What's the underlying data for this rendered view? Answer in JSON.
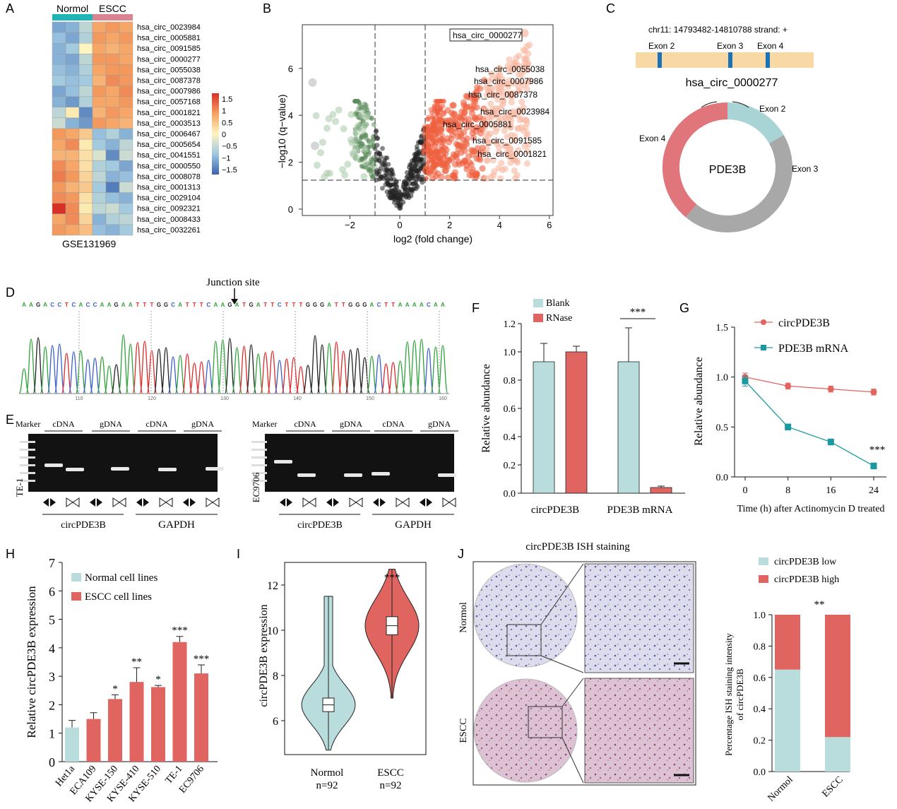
{
  "panels": {
    "A": "A",
    "B": "B",
    "C": "C",
    "D": "D",
    "E": "E",
    "F": "F",
    "G": "G",
    "H": "H",
    "I": "I",
    "J": "J"
  },
  "heatmap": {
    "group1": "Normol",
    "group2": "ESCC",
    "dataset": "GSE131969",
    "group1_color": "#1fb5b5",
    "group2_color": "#d98490",
    "genes": [
      "hsa_circ_0023984",
      "hsa_circ_0005881",
      "hsa_circ_0091585",
      "hsa_circ_0000277",
      "hsa_circ_0055038",
      "hsa_circ_0087378",
      "hsa_circ_0007986",
      "hsa_circ_0057168",
      "hsa_circ_0001821",
      "hsa_circ_0003513",
      "hsa_circ_0006467",
      "hsa_circ_0005654",
      "hsa_circ_0041551",
      "hsa_circ_0000550",
      "hsa_circ_0008078",
      "hsa_circ_0001313",
      "hsa_circ_0029104",
      "hsa_circ_0092321",
      "hsa_circ_0008433",
      "hsa_circ_0032261"
    ],
    "values": [
      [
        -1.0,
        -0.9,
        -0.5,
        0.7,
        0.8,
        0.7
      ],
      [
        -0.8,
        -1.0,
        -0.6,
        0.8,
        0.7,
        0.8
      ],
      [
        -0.9,
        -0.7,
        0.0,
        0.7,
        0.6,
        0.7
      ],
      [
        -0.9,
        -1.0,
        -0.5,
        0.8,
        0.8,
        0.7
      ],
      [
        -0.8,
        -0.9,
        -0.6,
        0.7,
        0.8,
        0.8
      ],
      [
        -0.7,
        -0.8,
        -0.7,
        0.6,
        0.9,
        0.8
      ],
      [
        -1.0,
        -0.8,
        -0.5,
        0.8,
        0.7,
        0.9
      ],
      [
        -0.9,
        -1.1,
        -0.6,
        0.7,
        0.7,
        0.8
      ],
      [
        -0.5,
        0.1,
        -1.2,
        0.6,
        0.8,
        0.7
      ],
      [
        -0.4,
        -0.9,
        -1.1,
        0.8,
        0.7,
        0.6
      ],
      [
        0.8,
        0.7,
        0.4,
        -0.8,
        -0.6,
        -0.9
      ],
      [
        0.7,
        0.9,
        0.1,
        -0.7,
        -0.9,
        -0.5
      ],
      [
        0.6,
        0.6,
        0.2,
        -0.3,
        -1.2,
        -0.4
      ],
      [
        0.9,
        0.7,
        0.2,
        -0.6,
        -0.7,
        -1.0
      ],
      [
        1.0,
        0.8,
        0.3,
        -0.5,
        -0.9,
        -0.8
      ],
      [
        0.8,
        0.6,
        0.4,
        -0.7,
        -1.3,
        -0.4
      ],
      [
        0.9,
        0.8,
        0.2,
        -0.6,
        -0.8,
        -0.9
      ],
      [
        1.5,
        0.9,
        0.1,
        -0.5,
        -0.4,
        -0.7
      ],
      [
        0.7,
        0.9,
        0.3,
        -0.9,
        -0.6,
        -0.5
      ],
      [
        0.8,
        0.7,
        0.5,
        -0.8,
        -0.9,
        -0.7
      ]
    ],
    "legend_ticks": [
      "1.5",
      "1",
      "0.5",
      "0",
      "−0.5",
      "−1",
      "−1.5"
    ]
  },
  "volcano": {
    "xlabel": "log2 (fold change)",
    "ylabel": "−log10 (q−value)",
    "xticks": [
      "−2",
      "0",
      "2",
      "4",
      "6"
    ],
    "yticks": [
      "0",
      "2",
      "4",
      "6"
    ],
    "boxed_label": "hsa_circ_0000277",
    "labels": [
      "hsa_circ_0055038",
      "hsa_circ_0007986",
      "hsa_circ_0087378",
      "hsa_circ_0023984",
      "hsa_circ_0005881",
      "hsa_circ_0091585",
      "hsa_circ_0001821"
    ]
  },
  "circ_schematic": {
    "location": "chr11: 14793482-14810788 strand: +",
    "exons": [
      "Exon 2",
      "Exon 3",
      "Exon 4"
    ],
    "circ_name": "hsa_circ_0000277",
    "gene": "PDE3B",
    "ring_labels": [
      "Exon 2",
      "Exon 4",
      "Exon 3"
    ]
  },
  "sanger": {
    "junction": "Junction site",
    "sequence": "AAGACCTCACCAAGAATTTGGCATTTCAAGATGATTCTTTGGGATTGGGACTTAAAACAA",
    "positions": [
      "110",
      "120",
      "130",
      "140",
      "150",
      "160"
    ]
  },
  "gel": {
    "left": {
      "marker": "Marker",
      "cell": "TE-1",
      "lanes": [
        "cDNA",
        "gDNA",
        "cDNA",
        "gDNA"
      ],
      "group1": "circPDE3B",
      "group2": "GAPDH"
    },
    "right": {
      "marker": "Marker",
      "cell": "EC9706",
      "lanes": [
        "cDNA",
        "gDNA",
        "cDNA",
        "gDNA"
      ],
      "group1": "circPDE3B",
      "group2": "GAPDH"
    }
  },
  "chart_data": [
    {
      "panel": "F",
      "type": "bar",
      "categories": [
        "circPDE3B",
        "PDE3B mRNA"
      ],
      "series": [
        {
          "name": "Blank",
          "values": [
            0.93,
            0.93
          ],
          "errors": [
            0.13,
            0.24
          ],
          "color": "#b9dcdc"
        },
        {
          "name": "RNase",
          "values": [
            1.0,
            0.04
          ],
          "errors": [
            0.04,
            0.01
          ],
          "color": "#e0645f"
        }
      ],
      "ylabel": "Relative abundance",
      "ylim": [
        0,
        1.2
      ],
      "yticks": [
        "0.0",
        "0.2",
        "0.4",
        "0.6",
        "0.8",
        "1.0",
        "1.2"
      ],
      "significance": "***"
    },
    {
      "panel": "G",
      "type": "line",
      "x": [
        0,
        8,
        16,
        24
      ],
      "series": [
        {
          "name": "circPDE3B",
          "values": [
            1.0,
            0.91,
            0.88,
            0.85
          ],
          "errors": [
            0.04,
            0.03,
            0.03,
            0.03
          ],
          "color": "#e0645f"
        },
        {
          "name": "PDE3B mRNA",
          "values": [
            0.96,
            0.5,
            0.35,
            0.11
          ],
          "errors": [
            0.05,
            0.03,
            0.03,
            0.03
          ],
          "color": "#1a9aa0"
        }
      ],
      "xlabel": "Time (h) after Actinomycin D treated",
      "ylabel": "Relative abundance",
      "ylim": [
        0,
        1.5
      ],
      "yticks": [
        "0.0",
        "0.5",
        "1.0",
        "1.5"
      ],
      "xticks": [
        "0",
        "8",
        "16",
        "24"
      ],
      "significance": "***"
    },
    {
      "panel": "H",
      "type": "bar",
      "categories": [
        "Het1a",
        "ECA109",
        "KYSE-150",
        "KYSE-410",
        "KYSE-510",
        "TE-1",
        "EC9706"
      ],
      "values": [
        1.2,
        1.5,
        2.2,
        2.8,
        2.62,
        4.2,
        3.1
      ],
      "errors": [
        0.25,
        0.22,
        0.15,
        0.5,
        0.06,
        0.2,
        0.3
      ],
      "stars": [
        "",
        "",
        "*",
        "**",
        "*",
        "***",
        "***"
      ],
      "legend": [
        "Normal cell lines",
        "ESCC cell lines"
      ],
      "colors": [
        "#b9dcdc",
        "#e0645f"
      ],
      "ylabel": "Relative circPDE3B expression",
      "ylim": [
        0,
        7
      ],
      "yticks": [
        "0",
        "1",
        "2",
        "3",
        "4",
        "5",
        "6",
        "7"
      ]
    },
    {
      "panel": "I",
      "type": "violin",
      "categories": [
        "Normol",
        "ESCC"
      ],
      "n_labels": [
        "n=92",
        "n=92"
      ],
      "median": [
        6.7,
        10.2
      ],
      "q1": [
        6.4,
        9.8
      ],
      "q3": [
        7.0,
        10.6
      ],
      "min": [
        4.7,
        7.0
      ],
      "max": [
        11.5,
        12.7
      ],
      "colors": [
        "#b9dcdc",
        "#e0645f"
      ],
      "ylabel": "circPDE3B expression",
      "ylim": [
        4.5,
        13
      ],
      "yticks": [
        "6",
        "8",
        "10",
        "12"
      ],
      "significance": "***"
    },
    {
      "panel": "J",
      "type": "bar",
      "stacked": true,
      "categories": [
        "Normol",
        "ESCC"
      ],
      "series": [
        {
          "name": "circPDE3B low",
          "values": [
            0.65,
            0.22
          ],
          "color": "#b9dcdc"
        },
        {
          "name": "circPDE3B high",
          "values": [
            0.35,
            0.78
          ],
          "color": "#e0645f"
        }
      ],
      "ylabel": "Percentage ISH staining intensity of circPDE3B",
      "ylim": [
        0,
        1.0
      ],
      "yticks": [
        "0.0",
        "0.2",
        "0.4",
        "0.6",
        "0.8",
        "1.0"
      ],
      "significance": "**"
    }
  ],
  "ish": {
    "title": "circPDE3B ISH staining",
    "row1": "Normol",
    "row2": "ESCC"
  }
}
